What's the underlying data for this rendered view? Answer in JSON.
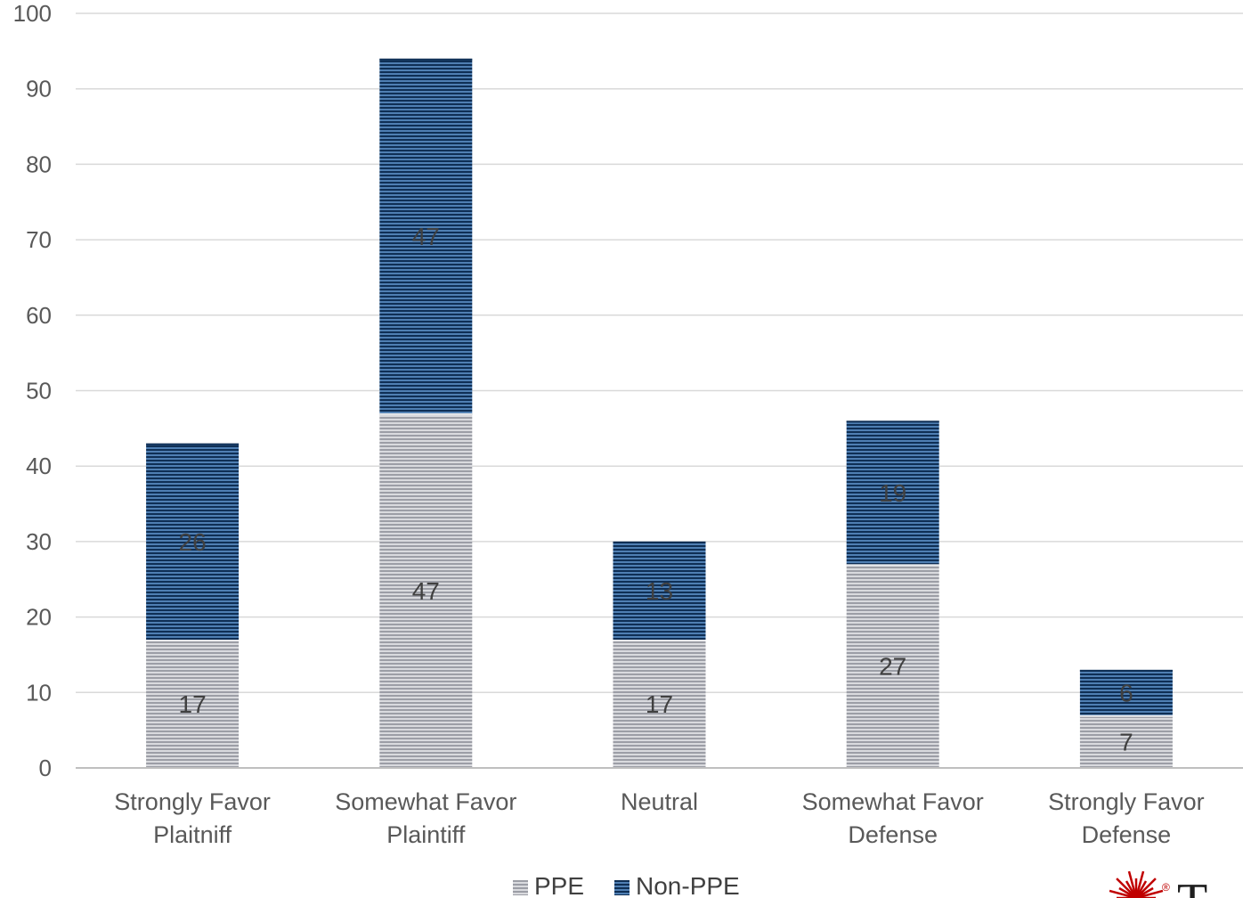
{
  "chart_data": {
    "type": "bar",
    "stacked": true,
    "categories": [
      [
        "Strongly Favor",
        "Plaitniff"
      ],
      [
        "Somewhat Favor",
        "Plaintiff"
      ],
      [
        "Neutral"
      ],
      [
        "Somewhat Favor",
        "Defense"
      ],
      [
        "Strongly Favor",
        "Defense"
      ]
    ],
    "series": [
      {
        "name": "PPE",
        "values": [
          17,
          47,
          17,
          27,
          7
        ],
        "color": "#a6a8b0"
      },
      {
        "name": "Non-PPE",
        "values": [
          26,
          47,
          13,
          19,
          6
        ],
        "color": "#1f4e79"
      }
    ],
    "ylim": [
      0,
      100
    ],
    "yticks": [
      0,
      10,
      20,
      30,
      40,
      50,
      60,
      70,
      80,
      90,
      100
    ],
    "grid": true,
    "legend_position": "bottom",
    "title": "",
    "xlabel": "",
    "ylabel": ""
  },
  "logo": {
    "name": "brand-logo",
    "letter": "T",
    "mark": "®",
    "colors": {
      "burst": "#c00000"
    }
  }
}
